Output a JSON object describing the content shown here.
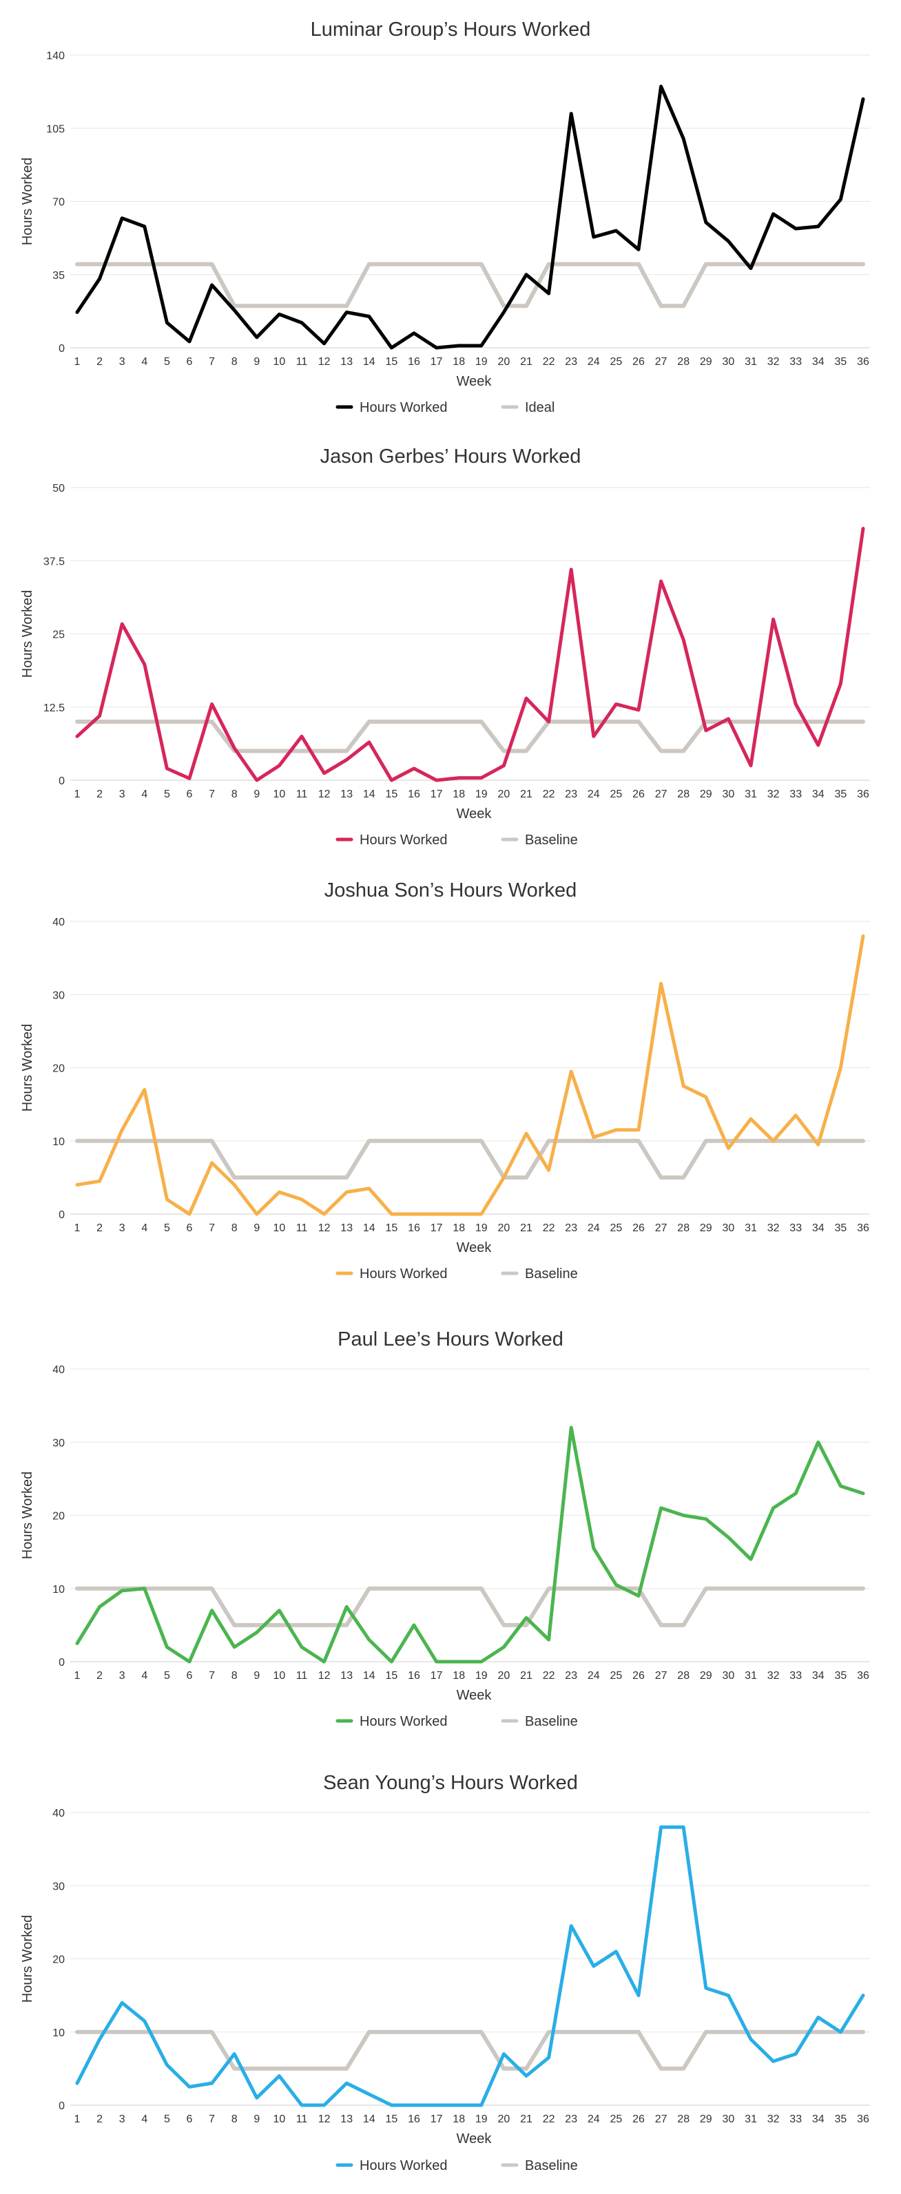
{
  "chart_data": [
    {
      "type": "line",
      "title": "Luminar Group’s Hours Worked",
      "xlabel": "Week",
      "ylabel": "Hours Worked",
      "ylim": [
        0,
        140
      ],
      "yticks": [
        "0",
        "35",
        "70",
        "105",
        "140"
      ],
      "categories": [
        "1",
        "2",
        "3",
        "4",
        "5",
        "6",
        "7",
        "8",
        "9",
        "10",
        "11",
        "12",
        "13",
        "14",
        "15",
        "16",
        "17",
        "18",
        "19",
        "20",
        "21",
        "22",
        "23",
        "24",
        "25",
        "26",
        "27",
        "28",
        "29",
        "30",
        "31",
        "32",
        "33",
        "34",
        "35",
        "36"
      ],
      "grid": true,
      "legend_position": "bottom",
      "series": [
        {
          "name": "Hours Worked",
          "color": "#000000",
          "values": [
            17,
            33,
            62,
            58,
            12,
            3,
            30,
            18,
            5,
            16,
            12,
            2,
            17,
            15,
            0,
            7,
            0,
            1,
            1,
            17,
            35,
            26,
            112,
            53,
            56,
            47,
            125,
            100,
            60,
            51,
            38,
            64,
            57,
            58,
            71,
            119
          ]
        },
        {
          "name": "Ideal",
          "color": "#cdc7c2",
          "values": [
            40,
            40,
            40,
            40,
            40,
            40,
            40,
            20,
            20,
            20,
            20,
            20,
            20,
            40,
            40,
            40,
            40,
            40,
            40,
            20,
            20,
            40,
            40,
            40,
            40,
            40,
            20,
            20,
            40,
            40,
            40,
            40,
            40,
            40,
            40,
            40
          ]
        }
      ]
    },
    {
      "type": "line",
      "title": "Jason Gerbes’ Hours Worked",
      "xlabel": "Week",
      "ylabel": "Hours Worked",
      "ylim": [
        0,
        50
      ],
      "yticks": [
        "0",
        "12.5",
        "25",
        "37.5",
        "50"
      ],
      "categories": [
        "1",
        "2",
        "3",
        "4",
        "5",
        "6",
        "7",
        "8",
        "9",
        "10",
        "11",
        "12",
        "13",
        "14",
        "15",
        "16",
        "17",
        "18",
        "19",
        "20",
        "21",
        "22",
        "23",
        "24",
        "25",
        "26",
        "27",
        "28",
        "29",
        "30",
        "31",
        "32",
        "33",
        "34",
        "35",
        "36"
      ],
      "grid": true,
      "legend_position": "bottom",
      "series": [
        {
          "name": "Hours Worked",
          "color": "#d6275a",
          "values": [
            7.5,
            11,
            26.7,
            19.8,
            2,
            0.3,
            13,
            5.5,
            0,
            2.5,
            7.5,
            1.2,
            3.5,
            6.5,
            0,
            2,
            0,
            0.4,
            0.4,
            2.5,
            14,
            10,
            36,
            7.5,
            13,
            12,
            34,
            24,
            8.5,
            10.5,
            2.5,
            27.5,
            13,
            6,
            16.5,
            43
          ]
        },
        {
          "name": "Baseline",
          "color": "#cdc7c2",
          "values": [
            10,
            10,
            10,
            10,
            10,
            10,
            10,
            5,
            5,
            5,
            5,
            5,
            5,
            10,
            10,
            10,
            10,
            10,
            10,
            5,
            5,
            10,
            10,
            10,
            10,
            10,
            5,
            5,
            10,
            10,
            10,
            10,
            10,
            10,
            10,
            10
          ]
        }
      ]
    },
    {
      "type": "line",
      "title": "Joshua Son’s Hours Worked",
      "xlabel": "Week",
      "ylabel": "Hours Worked",
      "ylim": [
        0,
        40
      ],
      "yticks": [
        "0",
        "10",
        "20",
        "30",
        "40"
      ],
      "categories": [
        "1",
        "2",
        "3",
        "4",
        "5",
        "6",
        "7",
        "8",
        "9",
        "10",
        "11",
        "12",
        "13",
        "14",
        "15",
        "16",
        "17",
        "18",
        "19",
        "20",
        "21",
        "22",
        "23",
        "24",
        "25",
        "26",
        "27",
        "28",
        "29",
        "30",
        "31",
        "32",
        "33",
        "34",
        "35",
        "36"
      ],
      "grid": true,
      "legend_position": "bottom",
      "series": [
        {
          "name": "Hours Worked",
          "color": "#f7b049",
          "values": [
            4,
            4.5,
            11.5,
            17,
            2,
            0,
            7,
            4,
            0,
            3,
            2,
            0,
            3,
            3.5,
            0,
            0,
            0,
            0,
            0,
            5,
            11,
            6,
            19.5,
            10.5,
            11.5,
            11.5,
            31.5,
            17.5,
            16,
            9,
            13,
            10,
            13.5,
            9.5,
            20,
            38
          ]
        },
        {
          "name": "Baseline",
          "color": "#cdc7c2",
          "values": [
            10,
            10,
            10,
            10,
            10,
            10,
            10,
            5,
            5,
            5,
            5,
            5,
            5,
            10,
            10,
            10,
            10,
            10,
            10,
            5,
            5,
            10,
            10,
            10,
            10,
            10,
            5,
            5,
            10,
            10,
            10,
            10,
            10,
            10,
            10,
            10
          ]
        }
      ]
    },
    {
      "type": "line",
      "title": "Paul Lee’s Hours Worked",
      "xlabel": "Week",
      "ylabel": "Hours Worked",
      "ylim": [
        0,
        40
      ],
      "yticks": [
        "0",
        "10",
        "20",
        "30",
        "40"
      ],
      "categories": [
        "1",
        "2",
        "3",
        "4",
        "5",
        "6",
        "7",
        "8",
        "9",
        "10",
        "11",
        "12",
        "13",
        "14",
        "15",
        "16",
        "17",
        "18",
        "19",
        "20",
        "21",
        "22",
        "23",
        "24",
        "25",
        "26",
        "27",
        "28",
        "29",
        "30",
        "31",
        "32",
        "33",
        "34",
        "35",
        "36"
      ],
      "grid": true,
      "legend_position": "bottom",
      "series": [
        {
          "name": "Hours Worked",
          "color": "#4bb54f",
          "values": [
            2.5,
            7.5,
            9.7,
            10,
            2,
            0,
            7,
            2,
            4,
            7,
            2,
            0,
            7.5,
            3,
            0,
            5,
            0,
            0,
            0,
            2,
            6,
            3,
            32,
            15.5,
            10.5,
            9,
            21,
            20,
            19.5,
            17,
            14,
            21,
            23,
            30,
            24,
            23
          ]
        },
        {
          "name": "Baseline",
          "color": "#cdc7c2",
          "values": [
            10,
            10,
            10,
            10,
            10,
            10,
            10,
            5,
            5,
            5,
            5,
            5,
            5,
            10,
            10,
            10,
            10,
            10,
            10,
            5,
            5,
            10,
            10,
            10,
            10,
            10,
            5,
            5,
            10,
            10,
            10,
            10,
            10,
            10,
            10,
            10
          ]
        }
      ]
    },
    {
      "type": "line",
      "title": "Sean Young’s Hours Worked",
      "xlabel": "Week",
      "ylabel": "Hours Worked",
      "ylim": [
        0,
        40
      ],
      "yticks": [
        "0",
        "10",
        "20",
        "30",
        "40"
      ],
      "categories": [
        "1",
        "2",
        "3",
        "4",
        "5",
        "6",
        "7",
        "8",
        "9",
        "10",
        "11",
        "12",
        "13",
        "14",
        "15",
        "16",
        "17",
        "18",
        "19",
        "20",
        "21",
        "22",
        "23",
        "24",
        "25",
        "26",
        "27",
        "28",
        "29",
        "30",
        "31",
        "32",
        "33",
        "34",
        "35",
        "36"
      ],
      "grid": true,
      "legend_position": "bottom",
      "series": [
        {
          "name": "Hours Worked",
          "color": "#29aee6",
          "values": [
            3,
            9,
            14,
            11.5,
            5.5,
            2.5,
            3,
            7,
            1,
            4,
            0,
            0,
            3,
            1.5,
            0,
            0,
            0,
            0,
            0,
            7,
            4,
            6.5,
            24.5,
            19,
            21,
            15,
            38,
            38,
            16,
            15,
            9,
            6,
            7,
            12,
            10,
            15
          ]
        },
        {
          "name": "Baseline",
          "color": "#cdc7c2",
          "values": [
            10,
            10,
            10,
            10,
            10,
            10,
            10,
            5,
            5,
            5,
            5,
            5,
            5,
            10,
            10,
            10,
            10,
            10,
            10,
            5,
            5,
            10,
            10,
            10,
            10,
            10,
            5,
            5,
            10,
            10,
            10,
            10,
            10,
            10,
            10,
            10
          ]
        }
      ]
    }
  ]
}
